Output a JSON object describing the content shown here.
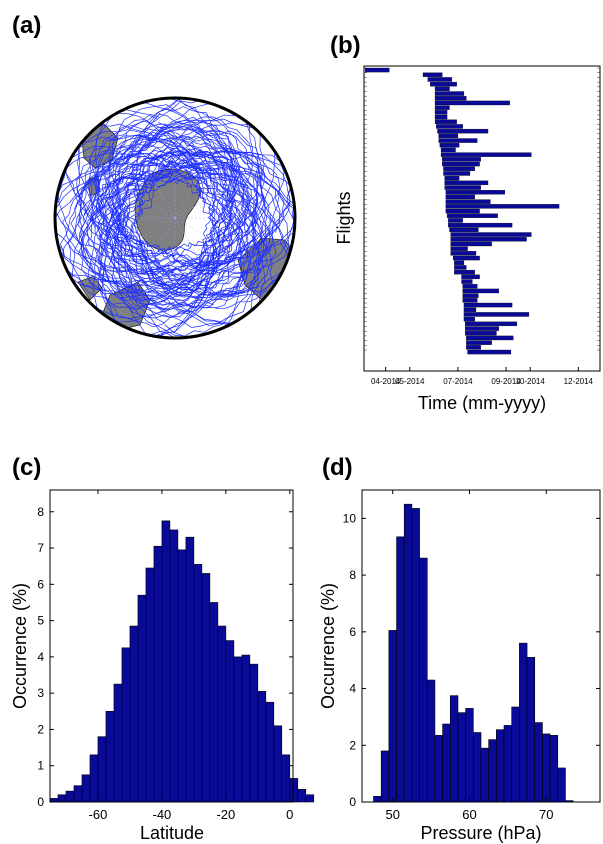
{
  "panels": {
    "a": {
      "label": "(a)"
    },
    "b": {
      "label": "(b)"
    },
    "c": {
      "label": "(c)"
    },
    "d": {
      "label": "(d)"
    }
  },
  "chart_data": [
    {
      "panel": "a",
      "type": "map",
      "projection": "south-polar stereographic",
      "trajectory_color": "#1f2fff",
      "land_color": "#808080"
    },
    {
      "panel": "b",
      "type": "bar",
      "orientation": "horizontal",
      "xlabel": "Time (mm-yyyy)",
      "ylabel": "Flights",
      "tick_labels": [
        "04-2014",
        "05-2014",
        "07-2014",
        "09-2014",
        "10-2014",
        "12-2014"
      ],
      "tick_months": [
        3,
        4,
        6,
        8,
        9,
        11
      ],
      "xlim_months": [
        2.1,
        11.9
      ],
      "bar_color": "#0a0a99",
      "flights": [
        [
          2.15,
          3.15
        ],
        [
          4.55,
          5.35
        ],
        [
          4.75,
          5.75
        ],
        [
          4.85,
          5.95
        ],
        [
          5.05,
          5.65
        ],
        [
          5.05,
          6.25
        ],
        [
          5.05,
          6.35
        ],
        [
          5.05,
          8.15
        ],
        [
          5.05,
          5.65
        ],
        [
          5.05,
          5.55
        ],
        [
          5.05,
          5.55
        ],
        [
          5.05,
          5.95
        ],
        [
          5.1,
          6.2
        ],
        [
          5.15,
          7.25
        ],
        [
          5.2,
          6.0
        ],
        [
          5.2,
          6.8
        ],
        [
          5.25,
          6.05
        ],
        [
          5.3,
          5.9
        ],
        [
          5.3,
          9.05
        ],
        [
          5.35,
          6.95
        ],
        [
          5.35,
          6.9
        ],
        [
          5.4,
          6.7
        ],
        [
          5.4,
          6.5
        ],
        [
          5.45,
          6.05
        ],
        [
          5.45,
          7.25
        ],
        [
          5.45,
          6.95
        ],
        [
          5.5,
          7.95
        ],
        [
          5.5,
          6.7
        ],
        [
          5.5,
          7.35
        ],
        [
          5.5,
          10.2
        ],
        [
          5.5,
          6.9
        ],
        [
          5.55,
          7.65
        ],
        [
          5.6,
          6.2
        ],
        [
          5.6,
          8.25
        ],
        [
          5.65,
          6.85
        ],
        [
          5.7,
          9.05
        ],
        [
          5.7,
          8.85
        ],
        [
          5.7,
          7.4
        ],
        [
          5.7,
          6.4
        ],
        [
          5.7,
          6.75
        ],
        [
          5.8,
          6.9
        ],
        [
          5.85,
          6.25
        ],
        [
          5.85,
          6.35
        ],
        [
          5.85,
          6.7
        ],
        [
          6.15,
          6.9
        ],
        [
          6.15,
          6.6
        ],
        [
          6.2,
          6.8
        ],
        [
          6.2,
          7.7
        ],
        [
          6.2,
          6.85
        ],
        [
          6.2,
          6.8
        ],
        [
          6.25,
          8.25
        ],
        [
          6.25,
          6.75
        ],
        [
          6.25,
          8.95
        ],
        [
          6.25,
          6.7
        ],
        [
          6.3,
          8.45
        ],
        [
          6.3,
          7.7
        ],
        [
          6.3,
          7.6
        ],
        [
          6.35,
          8.3
        ],
        [
          6.35,
          7.4
        ],
        [
          6.35,
          6.95
        ],
        [
          6.4,
          8.2
        ]
      ]
    },
    {
      "panel": "c",
      "type": "bar",
      "style": "histogram",
      "xlabel": "Latitude",
      "ylabel": "Occurrence (%)",
      "xlim": [
        -75,
        1
      ],
      "ylim": [
        0,
        8.6
      ],
      "xticks": [
        -60,
        -40,
        -20,
        0
      ],
      "yticks": [
        0,
        1,
        2,
        3,
        4,
        5,
        6,
        7,
        8
      ],
      "bin_start": -75,
      "bin_width": 2.5,
      "values": [
        0.1,
        0.2,
        0.3,
        0.45,
        0.75,
        1.3,
        1.8,
        2.5,
        3.25,
        4.25,
        4.85,
        5.7,
        6.45,
        7.05,
        7.75,
        7.5,
        6.95,
        7.3,
        6.55,
        6.3,
        5.5,
        4.85,
        4.45,
        4.0,
        4.05,
        3.8,
        3.05,
        2.75,
        2.1,
        1.3,
        0.65,
        0.35,
        0.2
      ]
    },
    {
      "panel": "d",
      "type": "bar",
      "style": "histogram",
      "xlabel": "Pressure (hPa)",
      "ylabel": "Occurrence (%)",
      "xlim": [
        46,
        77
      ],
      "ylim": [
        0,
        11
      ],
      "xticks": [
        50,
        60,
        70
      ],
      "yticks": [
        0,
        2,
        4,
        6,
        8,
        10
      ],
      "bin_start": 47.5,
      "bin_width": 1,
      "values": [
        0.2,
        1.8,
        6.05,
        9.35,
        10.5,
        10.35,
        8.6,
        4.3,
        2.35,
        2.75,
        3.75,
        3.15,
        3.3,
        2.45,
        1.9,
        2.2,
        2.55,
        2.7,
        3.35,
        5.6,
        5.1,
        2.8,
        2.4,
        2.35,
        1.2,
        0.05
      ]
    }
  ]
}
